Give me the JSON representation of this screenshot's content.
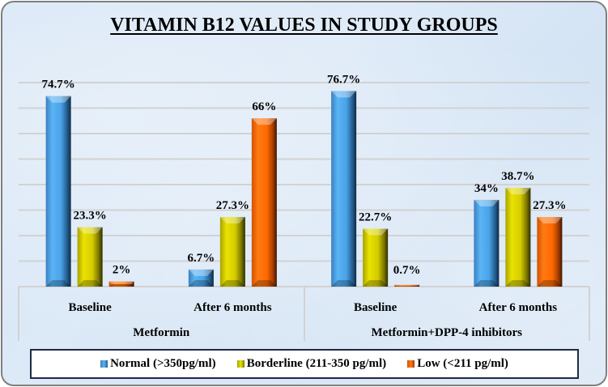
{
  "chart_data": {
    "type": "bar",
    "title": "VITAMIN B12 VALUES IN STUDY GROUPS",
    "xlabel": "",
    "ylabel": "",
    "ylim": [
      0,
      80
    ],
    "grid": true,
    "legend_position": "bottom",
    "groups": [
      {
        "label": "Metformin",
        "categories": [
          "Baseline",
          "After 6 months"
        ]
      },
      {
        "label": "Metformin+DPP-4 inhibitors",
        "categories": [
          "Baseline",
          "After 6 months"
        ]
      }
    ],
    "categories": [
      "Baseline",
      "After 6 months",
      "Baseline",
      "After 6 months"
    ],
    "series": [
      {
        "name": "Normal (>350pg/ml)",
        "color": "#4aa3e8",
        "values": [
          74.7,
          6.7,
          76.7,
          34
        ],
        "labels": [
          "74.7%",
          "6.7%",
          "76.7%",
          "34%"
        ]
      },
      {
        "name": "Borderline (211-350 pg/ml)",
        "color": "#d4cc00",
        "values": [
          23.3,
          27.3,
          22.7,
          38.7
        ],
        "labels": [
          "23.3%",
          "27.3%",
          "22.7%",
          "38.7%"
        ]
      },
      {
        "name": "Low (<211 pg/ml)",
        "color": "#ff6a00",
        "values": [
          2,
          66,
          0.7,
          27.3
        ],
        "labels": [
          "2%",
          "66%",
          "0.7%",
          "27.3%"
        ]
      }
    ]
  }
}
